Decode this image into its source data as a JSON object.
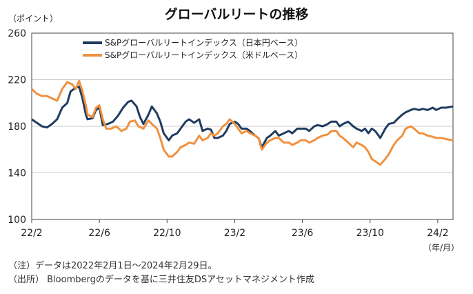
{
  "chart_data": {
    "type": "line",
    "title": "グローバルリートの推移",
    "y_unit": "（ポイント）",
    "x_unit": "（年/月）",
    "ylim": [
      100,
      260
    ],
    "yticks": [
      100,
      140,
      180,
      220,
      260
    ],
    "xticks": [
      {
        "label": "22/2",
        "x": 0
      },
      {
        "label": "22/6",
        "x": 4
      },
      {
        "label": "22/10",
        "x": 8
      },
      {
        "label": "23/2",
        "x": 12
      },
      {
        "label": "23/6",
        "x": 16
      },
      {
        "label": "23/10",
        "x": 20
      },
      {
        "label": "24/2",
        "x": 24
      }
    ],
    "xlim": [
      0,
      24.9
    ],
    "grid": true,
    "legend_position": "top-center",
    "series": [
      {
        "name": "S&Pグローバルリートインデックス（日本円ベース）",
        "color": "#1f3c5f",
        "points": [
          [
            0,
            186
          ],
          [
            0.3,
            183
          ],
          [
            0.6,
            180
          ],
          [
            0.9,
            179
          ],
          [
            1.2,
            182
          ],
          [
            1.5,
            186
          ],
          [
            1.8,
            196
          ],
          [
            2.1,
            200
          ],
          [
            2.3,
            210
          ],
          [
            2.6,
            213
          ],
          [
            2.8,
            214
          ],
          [
            3.0,
            204
          ],
          [
            3.2,
            190
          ],
          [
            3.3,
            186
          ],
          [
            3.6,
            187
          ],
          [
            3.8,
            194
          ],
          [
            4.0,
            196
          ],
          [
            4.2,
            181
          ],
          [
            4.5,
            182
          ],
          [
            4.8,
            184
          ],
          [
            5.1,
            189
          ],
          [
            5.4,
            196
          ],
          [
            5.7,
            201
          ],
          [
            5.9,
            202
          ],
          [
            6.2,
            197
          ],
          [
            6.4,
            188
          ],
          [
            6.6,
            182
          ],
          [
            6.9,
            190
          ],
          [
            7.1,
            197
          ],
          [
            7.4,
            191
          ],
          [
            7.6,
            184
          ],
          [
            7.8,
            174
          ],
          [
            8.1,
            168
          ],
          [
            8.3,
            172
          ],
          [
            8.6,
            174
          ],
          [
            8.8,
            178
          ],
          [
            9.1,
            184
          ],
          [
            9.3,
            186
          ],
          [
            9.6,
            183
          ],
          [
            9.9,
            186
          ],
          [
            10.1,
            176
          ],
          [
            10.4,
            178
          ],
          [
            10.6,
            177
          ],
          [
            10.8,
            170
          ],
          [
            11.0,
            170
          ],
          [
            11.3,
            172
          ],
          [
            11.5,
            176
          ],
          [
            11.7,
            182
          ],
          [
            12.0,
            184
          ],
          [
            12.2,
            182
          ],
          [
            12.4,
            178
          ],
          [
            12.7,
            178
          ],
          [
            12.9,
            176
          ],
          [
            13.2,
            172
          ],
          [
            13.4,
            170
          ],
          [
            13.6,
            162
          ],
          [
            13.9,
            170
          ],
          [
            14.1,
            172
          ],
          [
            14.4,
            176
          ],
          [
            14.6,
            172
          ],
          [
            14.9,
            174
          ],
          [
            15.2,
            176
          ],
          [
            15.4,
            174
          ],
          [
            15.7,
            178
          ],
          [
            15.9,
            178
          ],
          [
            16.2,
            178
          ],
          [
            16.4,
            176
          ],
          [
            16.7,
            180
          ],
          [
            16.9,
            181
          ],
          [
            17.2,
            180
          ],
          [
            17.5,
            182
          ],
          [
            17.7,
            184
          ],
          [
            18.0,
            184
          ],
          [
            18.2,
            180
          ],
          [
            18.4,
            182
          ],
          [
            18.7,
            184
          ],
          [
            19.0,
            180
          ],
          [
            19.2,
            178
          ],
          [
            19.5,
            176
          ],
          [
            19.7,
            178
          ],
          [
            19.9,
            174
          ],
          [
            20.1,
            178
          ],
          [
            20.3,
            176
          ],
          [
            20.6,
            170
          ],
          [
            20.9,
            178
          ],
          [
            21.1,
            182
          ],
          [
            21.4,
            183
          ],
          [
            21.6,
            186
          ],
          [
            21.9,
            190
          ],
          [
            22.1,
            192
          ],
          [
            22.4,
            194
          ],
          [
            22.6,
            195
          ],
          [
            22.9,
            194
          ],
          [
            23.1,
            195
          ],
          [
            23.4,
            194
          ],
          [
            23.7,
            196
          ],
          [
            23.9,
            194
          ],
          [
            24.2,
            196
          ],
          [
            24.5,
            196
          ],
          [
            24.9,
            197
          ]
        ]
      },
      {
        "name": "S&Pグローバルリートインデックス（米ドルベース）",
        "color": "#f0913f",
        "points": [
          [
            0,
            212
          ],
          [
            0.3,
            208
          ],
          [
            0.6,
            206
          ],
          [
            0.9,
            206
          ],
          [
            1.2,
            204
          ],
          [
            1.5,
            202
          ],
          [
            1.8,
            212
          ],
          [
            2.1,
            218
          ],
          [
            2.4,
            216
          ],
          [
            2.6,
            212
          ],
          [
            2.8,
            219
          ],
          [
            3.0,
            210
          ],
          [
            3.2,
            198
          ],
          [
            3.3,
            190
          ],
          [
            3.6,
            188
          ],
          [
            3.8,
            196
          ],
          [
            4.0,
            198
          ],
          [
            4.2,
            186
          ],
          [
            4.4,
            178
          ],
          [
            4.7,
            178
          ],
          [
            5.0,
            180
          ],
          [
            5.3,
            176
          ],
          [
            5.6,
            178
          ],
          [
            5.8,
            184
          ],
          [
            6.1,
            185
          ],
          [
            6.3,
            180
          ],
          [
            6.6,
            178
          ],
          [
            6.9,
            185
          ],
          [
            7.1,
            182
          ],
          [
            7.4,
            178
          ],
          [
            7.6,
            170
          ],
          [
            7.8,
            160
          ],
          [
            8.1,
            154
          ],
          [
            8.3,
            154
          ],
          [
            8.6,
            158
          ],
          [
            8.8,
            162
          ],
          [
            9.1,
            164
          ],
          [
            9.3,
            166
          ],
          [
            9.6,
            165
          ],
          [
            9.9,
            172
          ],
          [
            10.1,
            168
          ],
          [
            10.4,
            170
          ],
          [
            10.6,
            174
          ],
          [
            10.8,
            172
          ],
          [
            11.0,
            174
          ],
          [
            11.3,
            180
          ],
          [
            11.5,
            182
          ],
          [
            11.7,
            186
          ],
          [
            12.0,
            182
          ],
          [
            12.2,
            178
          ],
          [
            12.4,
            174
          ],
          [
            12.7,
            176
          ],
          [
            12.9,
            174
          ],
          [
            13.2,
            172
          ],
          [
            13.4,
            170
          ],
          [
            13.6,
            160
          ],
          [
            13.9,
            166
          ],
          [
            14.1,
            168
          ],
          [
            14.4,
            170
          ],
          [
            14.6,
            170
          ],
          [
            14.9,
            166
          ],
          [
            15.2,
            166
          ],
          [
            15.4,
            164
          ],
          [
            15.7,
            166
          ],
          [
            15.9,
            168
          ],
          [
            16.2,
            168
          ],
          [
            16.4,
            166
          ],
          [
            16.7,
            168
          ],
          [
            16.9,
            170
          ],
          [
            17.2,
            172
          ],
          [
            17.5,
            173
          ],
          [
            17.7,
            176
          ],
          [
            18.0,
            176
          ],
          [
            18.2,
            172
          ],
          [
            18.4,
            170
          ],
          [
            18.7,
            166
          ],
          [
            19.0,
            162
          ],
          [
            19.2,
            166
          ],
          [
            19.5,
            164
          ],
          [
            19.7,
            162
          ],
          [
            19.9,
            158
          ],
          [
            20.1,
            152
          ],
          [
            20.3,
            150
          ],
          [
            20.6,
            147
          ],
          [
            20.9,
            152
          ],
          [
            21.1,
            156
          ],
          [
            21.4,
            164
          ],
          [
            21.6,
            168
          ],
          [
            21.9,
            172
          ],
          [
            22.1,
            178
          ],
          [
            22.4,
            180
          ],
          [
            22.6,
            178
          ],
          [
            22.9,
            174
          ],
          [
            23.1,
            174
          ],
          [
            23.4,
            172
          ],
          [
            23.7,
            171
          ],
          [
            23.9,
            170
          ],
          [
            24.2,
            170
          ],
          [
            24.5,
            169
          ],
          [
            24.9,
            168
          ]
        ]
      }
    ]
  },
  "notes": [
    "（注）データは2022年2月1日～2024年2月29日。",
    "（出所） Bloombergのデータを基に三井住友DSアセットマネジメント作成"
  ]
}
